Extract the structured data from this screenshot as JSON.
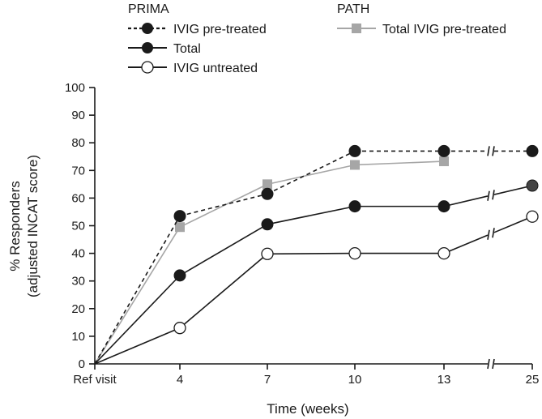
{
  "chart_data": {
    "type": "line",
    "title": "",
    "xlabel": "Time (weeks)",
    "ylabel_line1": "% Responders",
    "ylabel_line2": "(adjusted INCAT score)",
    "ylim": [
      0,
      100
    ],
    "yticks": [
      "0",
      "10",
      "20",
      "30",
      "40",
      "50",
      "60",
      "70",
      "80",
      "90",
      "100"
    ],
    "categories": [
      "Ref visit",
      "4",
      "7",
      "10",
      "13",
      "25"
    ],
    "axis_break_between": [
      "13",
      "25"
    ],
    "legend": {
      "group1_title": "PRIMA",
      "group2_title": "PATH"
    },
    "series": [
      {
        "name": "IVIG pre-treated",
        "group": "PRIMA",
        "style": "dashed",
        "marker": "filled-circle",
        "color": "#1a1a1a",
        "values": [
          0,
          53.5,
          61.5,
          77,
          77,
          77
        ]
      },
      {
        "name": "Total",
        "group": "PRIMA",
        "style": "solid",
        "marker": "filled-circle",
        "color": "#1a1a1a",
        "values": [
          0,
          32,
          50.5,
          57,
          57,
          64.5
        ]
      },
      {
        "name": "IVIG untreated",
        "group": "PRIMA",
        "style": "solid",
        "marker": "open-circle",
        "color": "#1a1a1a",
        "values": [
          0,
          13,
          39.8,
          40,
          40,
          53.3
        ]
      },
      {
        "name": "Total IVIG pre-treated",
        "group": "PATH",
        "style": "solid",
        "marker": "square",
        "color": "#a6a6a6",
        "values": [
          0,
          49.5,
          65,
          72,
          73.3,
          null
        ]
      }
    ]
  }
}
